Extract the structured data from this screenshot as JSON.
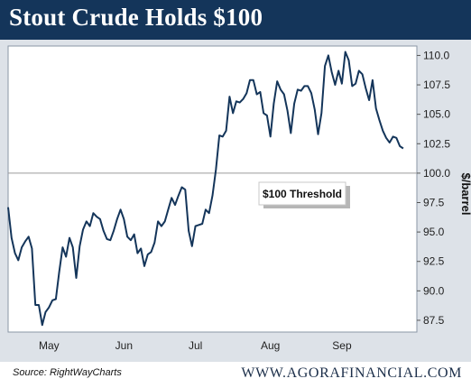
{
  "header": {
    "title": "Stout Crude Holds $100"
  },
  "footer": {
    "source": "Source: RightWayCharts",
    "site": "WWW.AGORAFINANCIAL.COM"
  },
  "colors": {
    "title_bg": "#14355a",
    "line": "#14355a",
    "frame": "#dde2e8",
    "plot_bg": "#ffffff"
  },
  "chart_data": {
    "type": "line",
    "title": "Stout Crude Holds $100",
    "ylabel": "$/barrel",
    "xlabel": "",
    "ylim": [
      86.5,
      110.8
    ],
    "yticks": [
      "110.0",
      "107.5",
      "105.0",
      "102.5",
      "100.0",
      "97.5",
      "95.0",
      "92.5",
      "90.0",
      "87.5"
    ],
    "ytick_values": [
      110.0,
      107.5,
      105.0,
      102.5,
      100.0,
      97.5,
      95.0,
      92.5,
      90.0,
      87.5
    ],
    "xticks": [
      "May",
      "Jun",
      "Jul",
      "Aug",
      "Sep"
    ],
    "xtick_positions": [
      12,
      34,
      55,
      77,
      98
    ],
    "x_range": [
      0,
      120
    ],
    "grid": false,
    "reference_line": {
      "y": 100.0,
      "label": "$100 Threshold"
    },
    "series": [
      {
        "values": [
          97.1,
          94.5,
          93.2,
          92.6,
          93.7,
          94.2,
          94.6,
          93.6,
          88.8,
          88.8,
          87.1,
          88.2,
          88.6,
          89.2,
          89.3,
          91.6,
          93.7,
          92.9,
          94.5,
          93.7,
          91.1,
          93.8,
          95.2,
          95.9,
          95.5,
          96.6,
          96.3,
          96.1,
          95.1,
          94.4,
          94.3,
          95.1,
          96.1,
          96.9,
          96.1,
          94.6,
          94.3,
          94.8,
          93.2,
          93.6,
          92.1,
          93.1,
          93.3,
          94.1,
          95.9,
          95.5,
          95.9,
          96.9,
          97.9,
          97.3,
          98.1,
          98.8,
          98.6,
          95.1,
          93.8,
          95.5,
          95.6,
          95.7,
          96.9,
          96.6,
          98.1,
          100.3,
          103.2,
          103.1,
          103.6,
          106.5,
          105.1,
          106.1,
          106.0,
          106.3,
          106.8,
          107.9,
          107.9,
          106.7,
          106.9,
          105.1,
          104.9,
          103.1,
          105.9,
          107.8,
          107.1,
          106.7,
          105.3,
          103.4,
          105.9,
          107.1,
          107.0,
          107.4,
          107.4,
          106.8,
          105.4,
          103.3,
          105.1,
          109.1,
          110.0,
          108.6,
          107.5,
          108.7,
          107.6,
          110.3,
          109.6,
          107.4,
          107.6,
          108.7,
          108.4,
          107.2,
          106.2,
          107.9,
          105.5,
          104.5,
          103.6,
          103.0,
          102.6,
          103.1,
          103.0,
          102.3,
          102.1
        ]
      }
    ]
  }
}
